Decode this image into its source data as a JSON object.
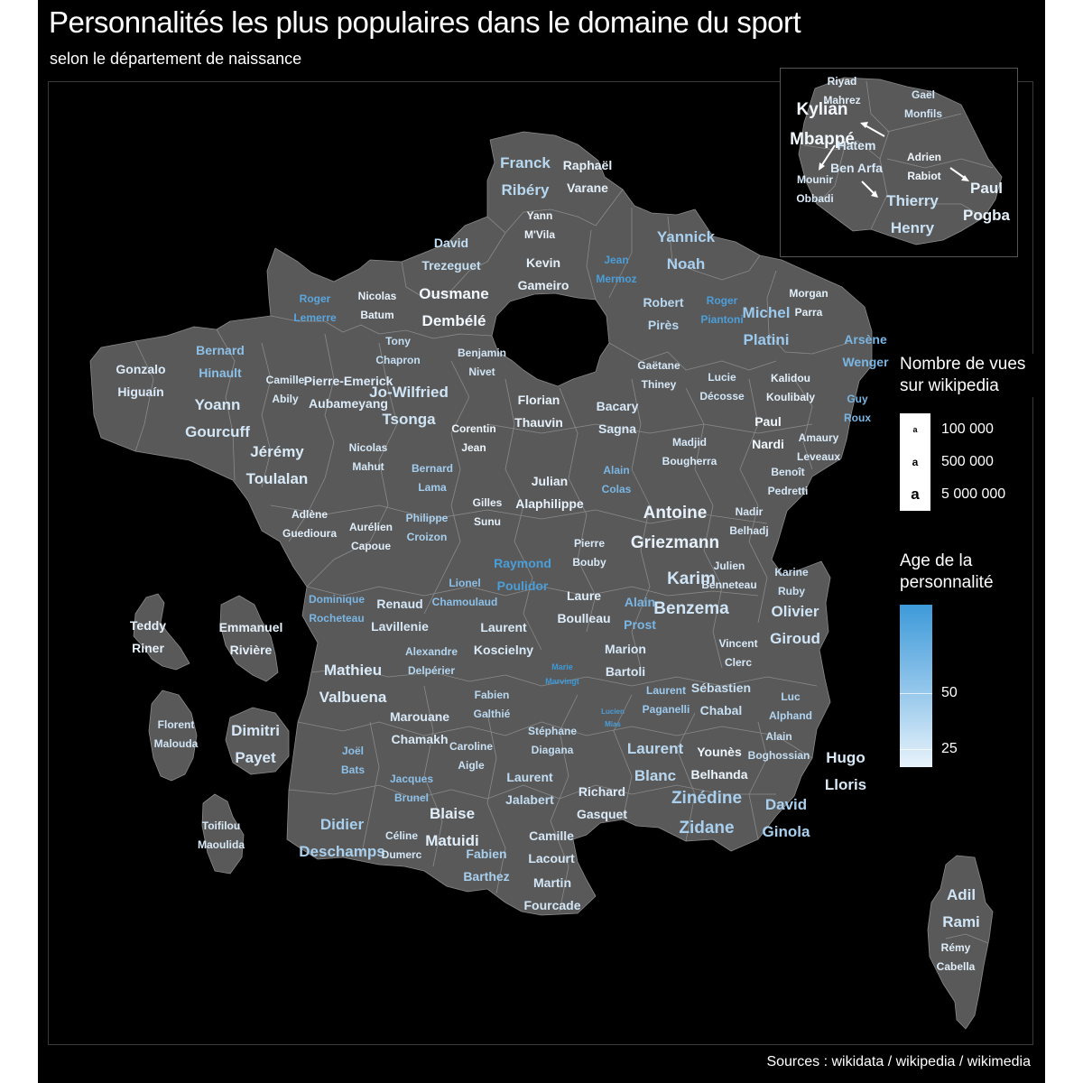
{
  "title": "Personnalités les plus populaires dans le domaine du sport",
  "subtitle": "selon le département de naissance",
  "caption": "Sources : wikidata / wikipedia / wikimedia",
  "colors": {
    "background": "#000000",
    "region_fill": "#595959",
    "region_border": "#8a8a8a",
    "age_low": "#e8f3fb",
    "age_high": "#3d9ad9"
  },
  "legend_size": {
    "title_line1": "Nombre de vues",
    "title_line2": "sur wikipedia",
    "key_glyph": "a",
    "entries": [
      {
        "label": "100 000",
        "views": 100000
      },
      {
        "label": "500 000",
        "views": 500000
      },
      {
        "label": "5 000 000",
        "views": 5000000
      }
    ]
  },
  "legend_age": {
    "title_line1": "Age de la",
    "title_line2": "personnalité",
    "ticks": [
      {
        "label": "50",
        "age": 50
      },
      {
        "label": "25",
        "age": 25
      }
    ],
    "range": [
      20,
      75
    ]
  },
  "labels": [
    {
      "id": "franck-ribery",
      "line1": "Franck",
      "line2": "Ribéry",
      "color": "#b8d8f0",
      "size": 2
    },
    {
      "id": "raphael-varane",
      "line1": "Raphaël",
      "line2": "Varane",
      "color": "#e4f0fa",
      "size": 1
    },
    {
      "id": "yann-mvila",
      "line1": "Yann",
      "line2": "M'Vila",
      "color": "#e9f3fb",
      "size": 0
    },
    {
      "id": "david-trezeguet",
      "line1": "David",
      "line2": "Trezeguet",
      "color": "#c4def2",
      "size": 1
    },
    {
      "id": "kevin-gameiro",
      "line1": "Kevin",
      "line2": "Gameiro",
      "color": "#e4f0fa",
      "size": 1
    },
    {
      "id": "jean-mermoz",
      "line1": "Jean",
      "line2": "Mermoz",
      "color": "#4a9ed9",
      "size": 0
    },
    {
      "id": "yannick-noah",
      "line1": "Yannick",
      "line2": "Noah",
      "color": "#a9d0ef",
      "size": 2
    },
    {
      "id": "roger-lemerre",
      "line1": "Roger",
      "line2": "Lemerre",
      "color": "#5aa6dc",
      "size": 0
    },
    {
      "id": "nicolas-batum",
      "line1": "Nicolas",
      "line2": "Batum",
      "color": "#e6f1fb",
      "size": 0
    },
    {
      "id": "ousmane-dembele",
      "line1": "Ousmane",
      "line2": "Dembélé",
      "color": "#f2f8fd",
      "size": 2
    },
    {
      "id": "robert-pires",
      "line1": "Robert",
      "line2": "Pirès",
      "color": "#b9d8f0",
      "size": 1
    },
    {
      "id": "roger-piantoni",
      "line1": "Roger",
      "line2": "Piantoni",
      "color": "#4b9ed9",
      "size": 0
    },
    {
      "id": "michel-platini",
      "line1": "Michel",
      "line2": "Platini",
      "color": "#9ccaee",
      "size": 2
    },
    {
      "id": "morgan-parra",
      "line1": "Morgan",
      "line2": "Parra",
      "color": "#e1eff9",
      "size": 0
    },
    {
      "id": "arsene-wenger",
      "line1": "Arsène",
      "line2": "Wenger",
      "color": "#7ab6e4",
      "size": 1
    },
    {
      "id": "bernard-hinault",
      "line1": "Bernard",
      "line2": "Hinault",
      "color": "#8cc0e8",
      "size": 1
    },
    {
      "id": "gonzalo-higuain",
      "line1": "Gonzalo",
      "line2": "Higuaín",
      "color": "#dbeaf8",
      "size": 1
    },
    {
      "id": "tony-chapron",
      "line1": "Tony",
      "line2": "Chapron",
      "color": "#c4def3",
      "size": 0
    },
    {
      "id": "benjamin-nivet",
      "line1": "Benjamin",
      "line2": "Nivet",
      "color": "#cfe4f5",
      "size": 0
    },
    {
      "id": "camille-abily",
      "line1": "Camille",
      "line2": "Abily",
      "color": "#d8eaf7",
      "size": 0
    },
    {
      "id": "pierre-emerick-aubameyang",
      "line1": "Pierre-Emerick",
      "line2": "Aubameyang",
      "color": "#dbeaf8",
      "size": 1
    },
    {
      "id": "jo-wilfried-tsonga",
      "line1": "Jo-Wilfried",
      "line2": "Tsonga",
      "color": "#cfe4f5",
      "size": 2
    },
    {
      "id": "gaetane-thiney",
      "line1": "Gaëtane",
      "line2": "Thiney",
      "color": "#d6e8f7",
      "size": 0
    },
    {
      "id": "lucie-decosse",
      "line1": "Lucie",
      "line2": "Décosse",
      "color": "#d0e5f6",
      "size": 0
    },
    {
      "id": "kalidou-koulibaly",
      "line1": "Kalidou",
      "line2": "Koulibaly",
      "color": "#e4f0fa",
      "size": 0
    },
    {
      "id": "guy-roux",
      "line1": "Guy",
      "line2": "Roux",
      "color": "#7ab6e4",
      "size": 0
    },
    {
      "id": "yoann-gourcuff",
      "line1": "Yoann",
      "line2": "Gourcuff",
      "color": "#d2e6f6",
      "size": 2
    },
    {
      "id": "florian-thauvin",
      "line1": "Florian",
      "line2": "Thauvin",
      "color": "#e6f1fb",
      "size": 1
    },
    {
      "id": "corentin-jean",
      "line1": "Corentin",
      "line2": "Jean",
      "color": "#ecf5fc",
      "size": 0
    },
    {
      "id": "bacary-sagna",
      "line1": "Bacary",
      "line2": "Sagna",
      "color": "#d6e8f7",
      "size": 1
    },
    {
      "id": "paul-nardi",
      "line1": "Paul",
      "line2": "Nardi",
      "color": "#f0f7fd",
      "size": 1
    },
    {
      "id": "amaury-leveaux",
      "line1": "Amaury",
      "line2": "Leveaux",
      "color": "#d9eaf8",
      "size": 0
    },
    {
      "id": "jeremy-toulalan",
      "line1": "Jérémy",
      "line2": "Toulalan",
      "color": "#d8e9f7",
      "size": 2
    },
    {
      "id": "nicolas-mahut",
      "line1": "Nicolas",
      "line2": "Mahut",
      "color": "#d4e7f6",
      "size": 0
    },
    {
      "id": "bernard-lama",
      "line1": "Bernard",
      "line2": "Lama",
      "color": "#a2cdef",
      "size": 0
    },
    {
      "id": "madjid-bougherra",
      "line1": "Madjid",
      "line2": "Bougherra",
      "color": "#d6e8f7",
      "size": 0
    },
    {
      "id": "benoit-pedretti",
      "line1": "Benoît",
      "line2": "Pedretti",
      "color": "#d4e7f6",
      "size": 0
    },
    {
      "id": "julian-alaphilippe",
      "line1": "Julian",
      "line2": "Alaphilippe",
      "color": "#e6f1fb",
      "size": 1
    },
    {
      "id": "alain-colas",
      "line1": "Alain",
      "line2": "Colas",
      "color": "#7ab6e4",
      "size": 0
    },
    {
      "id": "gilles-sunu",
      "line1": "Gilles",
      "line2": "Sunu",
      "color": "#e6f1fb",
      "size": 0
    },
    {
      "id": "adlene-guedioura",
      "line1": "Adlène",
      "line2": "Guedioura",
      "color": "#e0eef9",
      "size": 0
    },
    {
      "id": "aurelien-capoue",
      "line1": "Aurélien",
      "line2": "Capoue",
      "color": "#e0eef9",
      "size": 0
    },
    {
      "id": "philippe-croizon",
      "line1": "Philippe",
      "line2": "Croizon",
      "color": "#a8d0ee",
      "size": 0
    },
    {
      "id": "antoine-griezmann",
      "line1": "Antoine",
      "line2": "Griezmann",
      "color": "#e6f1fb",
      "size": 3
    },
    {
      "id": "nadir-belhadj",
      "line1": "Nadir",
      "line2": "Belhadj",
      "color": "#d6e8f7",
      "size": 0
    },
    {
      "id": "pierre-bouby",
      "line1": "Pierre",
      "line2": "Bouby",
      "color": "#d8e9f7",
      "size": 0
    },
    {
      "id": "raymond-poulidor",
      "line1": "Raymond",
      "line2": "Poulidor",
      "color": "#4a9ed9",
      "size": 1
    },
    {
      "id": "lionel-chamoulaud",
      "line1": "Lionel",
      "line2": "Chamoulaud",
      "color": "#8cc0e8",
      "size": 0
    },
    {
      "id": "karim-benzema",
      "line1": "Karim",
      "line2": "Benzema",
      "color": "#d0e5f6",
      "size": 3
    },
    {
      "id": "julien-benneteau",
      "line1": "Julien",
      "line2": "Benneteau",
      "color": "#d6e8f7",
      "size": 0
    },
    {
      "id": "karine-ruby",
      "line1": "Karine",
      "line2": "Ruby",
      "color": "#c9e1f4",
      "size": 0
    },
    {
      "id": "olivier-giroud",
      "line1": "Olivier",
      "line2": "Giroud",
      "color": "#cfe4f5",
      "size": 2
    },
    {
      "id": "laure-boulleau",
      "line1": "Laure",
      "line2": "Boulleau",
      "color": "#ddecf8",
      "size": 1
    },
    {
      "id": "alain-prost",
      "line1": "Alain",
      "line2": "Prost",
      "color": "#7ab6e4",
      "size": 1
    },
    {
      "id": "dominique-rocheteau",
      "line1": "Dominique",
      "line2": "Rocheteau",
      "color": "#7ab6e4",
      "size": 0
    },
    {
      "id": "renaud-lavillenie",
      "line1": "Renaud",
      "line2": "Lavillenie",
      "color": "#d6e8f7",
      "size": 1
    },
    {
      "id": "laurent-koscielny",
      "line1": "Laurent",
      "line2": "Koscielny",
      "color": "#d8e9f7",
      "size": 1
    },
    {
      "id": "alexandre-delperier",
      "line1": "Alexandre",
      "line2": "Delpérier",
      "color": "#b4d6f0",
      "size": 0
    },
    {
      "id": "marion-bartoli",
      "line1": "Marion",
      "line2": "Bartoli",
      "color": "#d6e8f7",
      "size": 1
    },
    {
      "id": "vincent-clerc",
      "line1": "Vincent",
      "line2": "Clerc",
      "color": "#d8e9f7",
      "size": 0
    },
    {
      "id": "teddy-riner",
      "line1": "Teddy",
      "line2": "Riner",
      "color": "#e4f0fa",
      "size": 1
    },
    {
      "id": "emmanuel-riviere",
      "line1": "Emmanuel",
      "line2": "Rivière",
      "color": "#e4f0fa",
      "size": 1
    },
    {
      "id": "mathieu-valbuena",
      "line1": "Mathieu",
      "line2": "Valbuena",
      "color": "#d8e9f7",
      "size": 2
    },
    {
      "id": "marie-marvingt",
      "line1": "Marie",
      "line2": "Marvingt",
      "color": "#3d9ad9",
      "size": -1
    },
    {
      "id": "fabien-galthie",
      "line1": "Fabien",
      "line2": "Galthié",
      "color": "#b9d8f0",
      "size": 0
    },
    {
      "id": "laurent-paganelli",
      "line1": "Laurent",
      "line2": "Paganelli",
      "color": "#9ccaee",
      "size": 0
    },
    {
      "id": "sebastien-chabal",
      "line1": "Sébastien",
      "line2": "Chabal",
      "color": "#c6dff3",
      "size": 1
    },
    {
      "id": "luc-alphand",
      "line1": "Luc",
      "line2": "Alphand",
      "color": "#b0d4f0",
      "size": 0
    },
    {
      "id": "florent-malouda",
      "line1": "Florent",
      "line2": "Malouda",
      "color": "#d0e5f6",
      "size": 0
    },
    {
      "id": "dimitri-payet",
      "line1": "Dimitri",
      "line2": "Payet",
      "color": "#d6e8f7",
      "size": 2
    },
    {
      "id": "marouane-chamakh",
      "line1": "Marouane",
      "line2": "Chamakh",
      "color": "#d8e9f7",
      "size": 1
    },
    {
      "id": "stephane-diagana",
      "line1": "Stéphane",
      "line2": "Diagana",
      "color": "#c2ddf2",
      "size": 0
    },
    {
      "id": "lucien-mias",
      "line1": "Lucien",
      "line2": "Mias",
      "color": "#4a9ed9",
      "size": -2
    },
    {
      "id": "joel-bats",
      "line1": "Joël",
      "line2": "Bats",
      "color": "#8cc0e8",
      "size": 0
    },
    {
      "id": "caroline-aigle",
      "line1": "Caroline",
      "line2": "Aigle",
      "color": "#c9e1f4",
      "size": 0
    },
    {
      "id": "laurent-blanc",
      "line1": "Laurent",
      "line2": "Blanc",
      "color": "#b9d8f0",
      "size": 2
    },
    {
      "id": "younes-belhanda",
      "line1": "Younès",
      "line2": "Belhanda",
      "color": "#ecf5fc",
      "size": 1
    },
    {
      "id": "alain-boghossian",
      "line1": "Alain",
      "line2": "Boghossian",
      "color": "#c4def3",
      "size": 0
    },
    {
      "id": "hugo-lloris",
      "line1": "Hugo",
      "line2": "Lloris",
      "color": "#d8e9f7",
      "size": 2
    },
    {
      "id": "laurent-jalabert",
      "line1": "Laurent",
      "line2": "Jalabert",
      "color": "#c2ddf2",
      "size": 1
    },
    {
      "id": "jacques-brunel",
      "line1": "Jacques",
      "line2": "Brunel",
      "color": "#8cc0e8",
      "size": 0
    },
    {
      "id": "richard-gasquet",
      "line1": "Richard",
      "line2": "Gasquet",
      "color": "#dbeaf8",
      "size": 1
    },
    {
      "id": "zinedine-zidane",
      "line1": "Zinédine",
      "line2": "Zidane",
      "color": "#a8d0ee",
      "size": 3
    },
    {
      "id": "david-ginola",
      "line1": "David",
      "line2": "Ginola",
      "color": "#a8d0ee",
      "size": 2
    },
    {
      "id": "toifilou-maoulida",
      "line1": "Toifilou",
      "line2": "Maoulida",
      "color": "#d8e9f7",
      "size": 0
    },
    {
      "id": "didier-deschamps",
      "line1": "Didier",
      "line2": "Deschamps",
      "color": "#a8d0ee",
      "size": 2
    },
    {
      "id": "blaise-matuidi",
      "line1": "Blaise",
      "line2": "Matuidi",
      "color": "#e0eef9",
      "size": 2
    },
    {
      "id": "celine-dumerc",
      "line1": "Céline",
      "line2": "Dumerc",
      "color": "#d2e6f6",
      "size": 0
    },
    {
      "id": "fabien-barthez",
      "line1": "Fabien",
      "line2": "Barthez",
      "color": "#a8d0ee",
      "size": 1
    },
    {
      "id": "camille-lacourt",
      "line1": "Camille",
      "line2": "Lacourt",
      "color": "#d4e7f6",
      "size": 1
    },
    {
      "id": "martin-fourcade",
      "line1": "Martin",
      "line2": "Fourcade",
      "color": "#d2e6f6",
      "size": 1
    },
    {
      "id": "adil-rami",
      "line1": "Adil",
      "line2": "Rami",
      "color": "#d0e5f6",
      "size": 2
    },
    {
      "id": "remy-cabella",
      "line1": "Rémy",
      "line2": "Cabella",
      "color": "#e0eef9",
      "size": 0
    }
  ],
  "inset_labels": [
    {
      "id": "riyad-mahrez",
      "line1": "Riyad",
      "line2": "Mahrez",
      "color": "#e0eef9",
      "size": 0
    },
    {
      "id": "gael-monfils",
      "line1": "Gaël",
      "line2": "Monfils",
      "color": "#d0e5f6",
      "size": 0
    },
    {
      "id": "kylian-mbappe",
      "line1": "Kylian",
      "line2": "Mbappé",
      "color": "#f2f8fd",
      "size": 3
    },
    {
      "id": "hatem-ben-arfa",
      "line1": "Hatem",
      "line2": "Ben Arfa",
      "color": "#d6e8f7",
      "size": 1
    },
    {
      "id": "adrien-rabiot",
      "line1": "Adrien",
      "line2": "Rabiot",
      "color": "#f0f7fd",
      "size": 0
    },
    {
      "id": "mounir-obbadi",
      "line1": "Mounir",
      "line2": "Obbadi",
      "color": "#d8e9f7",
      "size": 0
    },
    {
      "id": "thierry-henry",
      "line1": "Thierry",
      "line2": "Henry",
      "color": "#c9e1f4",
      "size": 2
    },
    {
      "id": "paul-pogba",
      "line1": "Paul",
      "line2": "Pogba",
      "color": "#e4f0fa",
      "size": 2
    }
  ]
}
